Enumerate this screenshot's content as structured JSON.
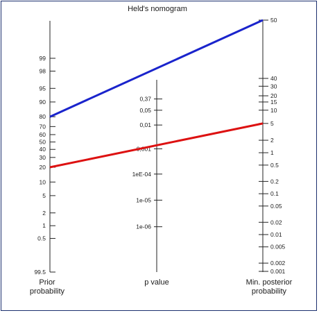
{
  "title": "Held's nomogram",
  "axes": {
    "left": {
      "label_line1": "Prior",
      "label_line2": "probability",
      "ticks": [
        {
          "label": "0.5",
          "v": 0.5
        },
        {
          "label": "1",
          "v": 1
        },
        {
          "label": "2",
          "v": 2
        },
        {
          "label": "5",
          "v": 5
        },
        {
          "label": "10",
          "v": 10
        },
        {
          "label": "20",
          "v": 20
        },
        {
          "label": "30",
          "v": 30
        },
        {
          "label": "40",
          "v": 40
        },
        {
          "label": "50",
          "v": 50
        },
        {
          "label": "60",
          "v": 60
        },
        {
          "label": "70",
          "v": 70
        },
        {
          "label": "80",
          "v": 80
        },
        {
          "label": "90",
          "v": 90
        },
        {
          "label": "95",
          "v": 95
        },
        {
          "label": "98",
          "v": 98
        },
        {
          "label": "99",
          "v": 99
        },
        {
          "label": "99.5",
          "v": 99.5
        }
      ]
    },
    "middle": {
      "label": "p value",
      "ticks": [
        {
          "label": "0,37",
          "v": 0.37
        },
        {
          "label": "0,05",
          "v": 0.05
        },
        {
          "label": "0,01",
          "v": 0.01
        },
        {
          "label": "0,001",
          "v": 0.001
        },
        {
          "label": "1eE-04",
          "v": 0.0001
        },
        {
          "label": "1e-05",
          "v": 1e-05
        },
        {
          "label": "1e-06",
          "v": 1e-06
        }
      ]
    },
    "right": {
      "label_line1": "Min. posterior",
      "label_line2": "probability",
      "ticks": [
        {
          "label": "50",
          "v": 50
        },
        {
          "label": "40",
          "v": 40
        },
        {
          "label": "30",
          "v": 30
        },
        {
          "label": "20",
          "v": 20
        },
        {
          "label": "15",
          "v": 15
        },
        {
          "label": "10",
          "v": 10
        },
        {
          "label": "5",
          "v": 5
        },
        {
          "label": "2",
          "v": 2
        },
        {
          "label": "1",
          "v": 1
        },
        {
          "label": "0.5",
          "v": 0.5
        },
        {
          "label": "0.2",
          "v": 0.2
        },
        {
          "label": "0.1",
          "v": 0.1
        },
        {
          "label": "0.05",
          "v": 0.05
        },
        {
          "label": "0.02",
          "v": 0.02
        },
        {
          "label": "0.01",
          "v": 0.01
        },
        {
          "label": "0.005",
          "v": 0.005
        },
        {
          "label": "0.002",
          "v": 0.002
        },
        {
          "label": "0.001",
          "v": 0.001
        }
      ]
    }
  },
  "lines": [
    {
      "color": "#dd1111",
      "prior": 20,
      "p_value": 0.01,
      "posterior": 5
    },
    {
      "color": "#1a24cc",
      "prior": 80,
      "p_value": 0.01,
      "posterior": 50
    }
  ],
  "colors": {
    "frame": "#1b2f6e",
    "axis": "#222222"
  }
}
